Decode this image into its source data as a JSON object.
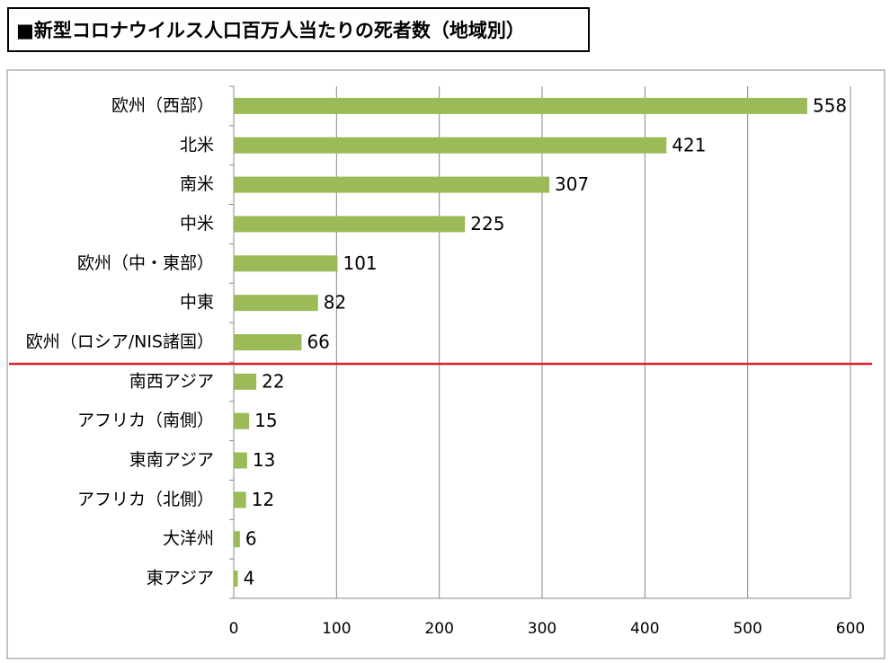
{
  "chart_data": {
    "type": "bar",
    "orientation": "horizontal",
    "title": "■新型コロナウイルス人口百万人当たりの死者数（地域別）",
    "categories": [
      "欧州（西部）",
      "北米",
      "南米",
      "中米",
      "欧州（中・東部）",
      "中東",
      "欧州（ロシア/NIS諸国）",
      "南西アジア",
      "アフリカ（南側）",
      "東南アジア",
      "アフリカ（北側）",
      "大洋州",
      "東アジア"
    ],
    "values": [
      558,
      421,
      307,
      225,
      101,
      82,
      66,
      22,
      15,
      13,
      12,
      6,
      4
    ],
    "color": "#9bbb59",
    "xlim": [
      0,
      600
    ],
    "xticks": [
      0,
      100,
      200,
      300,
      400,
      500,
      600
    ],
    "grid": true
  }
}
